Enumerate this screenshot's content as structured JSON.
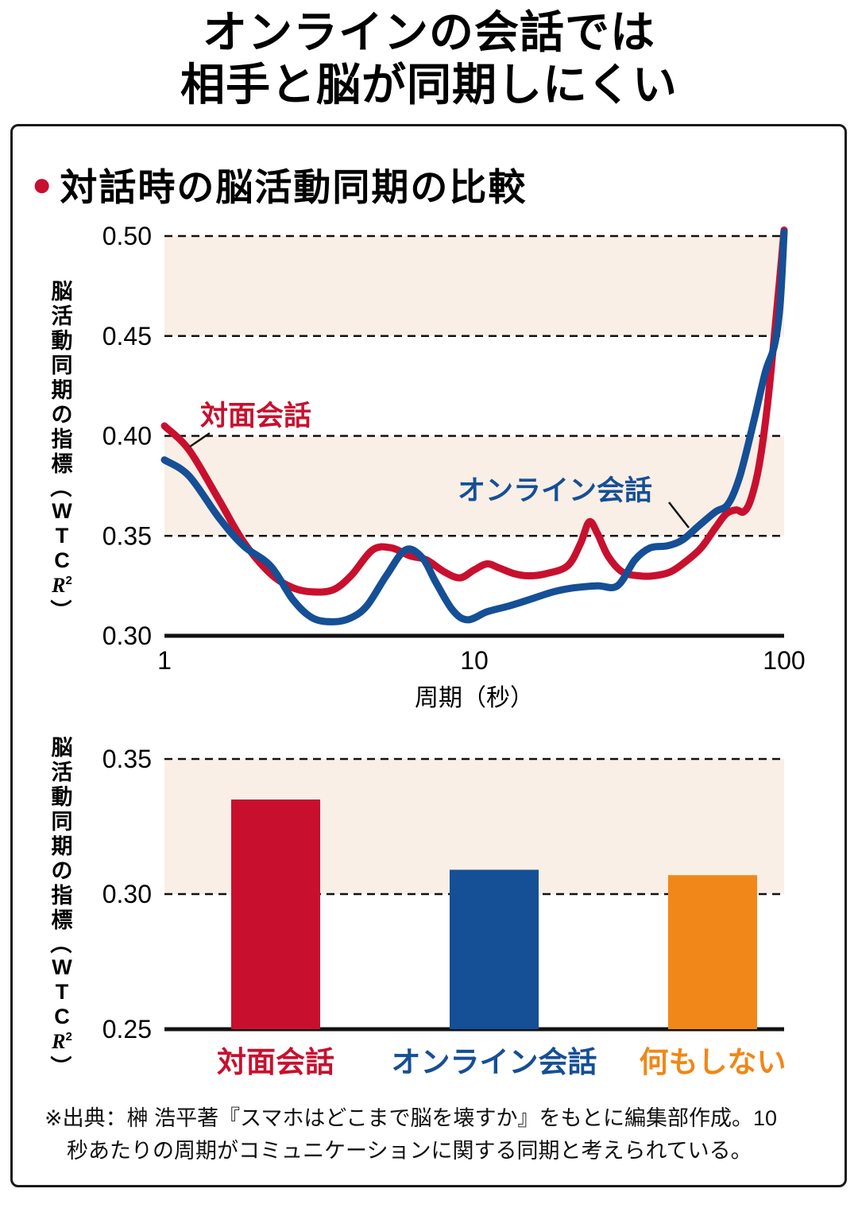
{
  "title": {
    "line1": "オンラインの会話では",
    "line2": "相手と脳が同期しにくい"
  },
  "panel": {
    "heading_bullet": "●",
    "heading": "対話時の脳活動同期の比較"
  },
  "footnote": {
    "line1": "※出典：榊 浩平著『スマホはどこまで脳を壊すか』をもとに編集部作成。10",
    "line2": "秒あたりの周期がコミュニケーションに関する同期と考えられている。"
  },
  "colors": {
    "red": "#C8102E",
    "blue": "#154F96",
    "orange": "#F08718",
    "band": "#f9efe6",
    "axis": "#111111"
  },
  "chart_data": [
    {
      "type": "line",
      "title": "対話時の脳活動同期の比較",
      "xlabel": "周期（秒）",
      "ylabel": "脳活動同期の指標（WTCR²）",
      "xscale": "log",
      "xlim": [
        1,
        100
      ],
      "ylim": [
        0.3,
        0.5
      ],
      "yticks": [
        "0.30",
        "0.35",
        "0.40",
        "0.45",
        "0.50"
      ],
      "xticks": [
        "1",
        "10",
        "100"
      ],
      "bands": [
        [
          0.35,
          0.4
        ],
        [
          0.45,
          0.5
        ]
      ],
      "grid": "dashed-horizontal",
      "series": [
        {
          "name": "対面会話",
          "color": "#C8102E",
          "x": [
            1,
            1.2,
            1.5,
            1.8,
            2.2,
            2.6,
            3,
            3.5,
            4,
            4.7,
            5.4,
            6.2,
            7,
            8,
            9,
            10,
            11,
            12,
            13.5,
            15,
            17,
            20,
            22,
            23.5,
            25,
            27,
            30,
            34,
            38,
            43,
            48,
            54,
            60,
            65,
            70,
            74,
            78,
            83,
            88,
            93,
            97,
            100
          ],
          "y": [
            0.405,
            0.393,
            0.368,
            0.347,
            0.331,
            0.324,
            0.322,
            0.323,
            0.33,
            0.343,
            0.344,
            0.34,
            0.338,
            0.332,
            0.329,
            0.333,
            0.336,
            0.334,
            0.331,
            0.33,
            0.331,
            0.335,
            0.346,
            0.357,
            0.351,
            0.34,
            0.332,
            0.33,
            0.33,
            0.332,
            0.337,
            0.344,
            0.354,
            0.361,
            0.363,
            0.362,
            0.368,
            0.385,
            0.413,
            0.45,
            0.48,
            0.503
          ]
        },
        {
          "name": "オンライン会話",
          "color": "#154F96",
          "x": [
            1,
            1.2,
            1.5,
            1.8,
            2.2,
            2.6,
            3,
            3.5,
            4,
            4.5,
            5.2,
            6,
            6.8,
            7.5,
            8.5,
            9.5,
            11,
            13,
            15,
            18,
            21,
            25,
            29,
            33,
            37,
            42,
            47,
            53,
            60,
            66,
            72,
            80,
            87,
            93,
            97,
            100
          ],
          "y": [
            0.388,
            0.38,
            0.359,
            0.345,
            0.335,
            0.318,
            0.309,
            0.307,
            0.309,
            0.315,
            0.33,
            0.343,
            0.339,
            0.327,
            0.313,
            0.308,
            0.312,
            0.315,
            0.318,
            0.322,
            0.324,
            0.325,
            0.325,
            0.338,
            0.344,
            0.345,
            0.348,
            0.355,
            0.362,
            0.366,
            0.38,
            0.408,
            0.432,
            0.445,
            0.465,
            0.502
          ]
        }
      ]
    },
    {
      "type": "bar",
      "ylabel": "脳活動同期の指標（WTCR²）",
      "ylim": [
        0.25,
        0.35
      ],
      "yticks": [
        "0.25",
        "0.30",
        "0.35"
      ],
      "bands": [
        [
          0.3,
          0.35
        ]
      ],
      "categories": [
        "対面会話",
        "オンライン会話",
        "何もしない"
      ],
      "values": [
        0.335,
        0.309,
        0.307
      ],
      "colors": [
        "#C8102E",
        "#154F96",
        "#F08718"
      ]
    }
  ]
}
